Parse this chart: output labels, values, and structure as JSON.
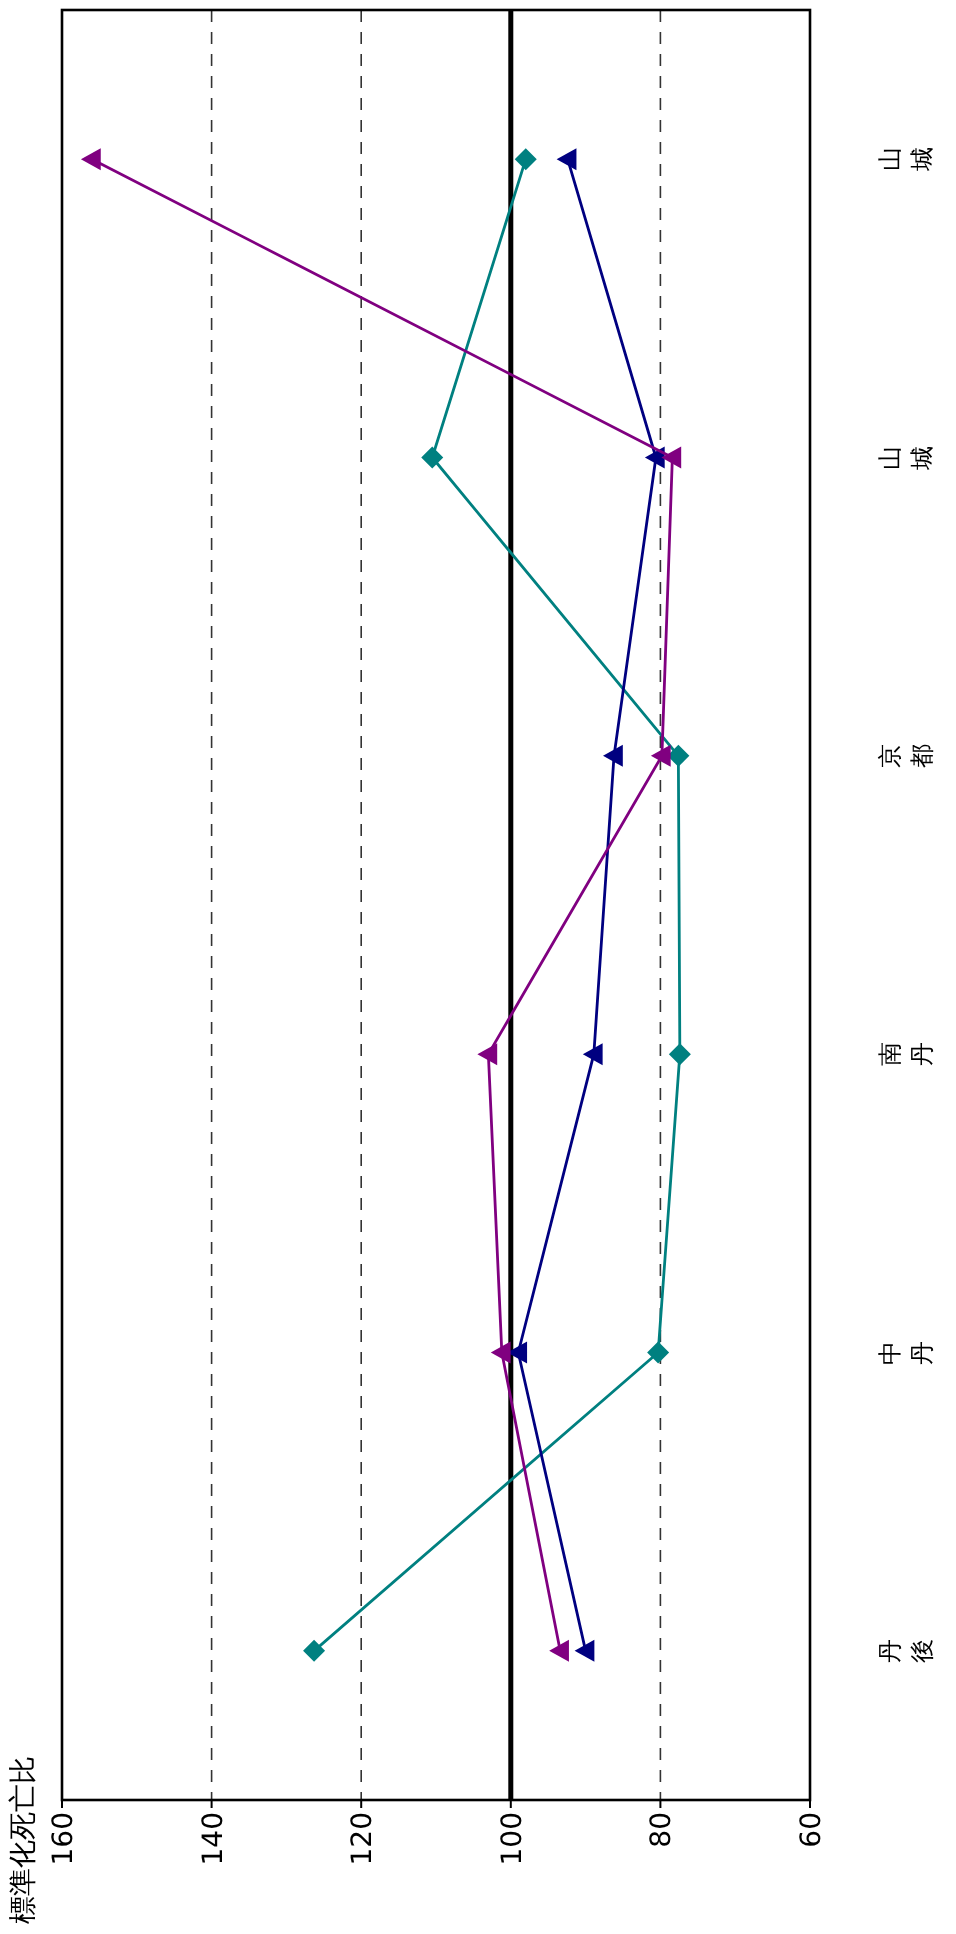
{
  "chart_data": {
    "type": "line",
    "orientation": "horizontal",
    "ylabel": "標準化死亡比",
    "categories": [
      "山城",
      "山城",
      "京都",
      "南丹",
      "中丹",
      "丹後"
    ],
    "xlim": [
      160,
      60
    ],
    "xticks": [
      160,
      140,
      120,
      100,
      80,
      60
    ],
    "grid": "x",
    "ref_lines": [
      {
        "axis": "x",
        "value": 100,
        "color": "#000000"
      }
    ],
    "series": [
      {
        "color": "#008080",
        "marker": "diamond",
        "values": [
          98,
          110.5,
          77.6,
          77.4,
          80.3,
          126.3
        ]
      },
      {
        "color": "#000080",
        "marker": "triangle",
        "values": [
          92.4,
          80.6,
          86.2,
          88.9,
          99,
          90
        ]
      },
      {
        "color": "#800080",
        "marker": "triangle",
        "values": [
          156,
          78.4,
          79.8,
          103,
          101.2,
          93.4
        ]
      }
    ]
  }
}
